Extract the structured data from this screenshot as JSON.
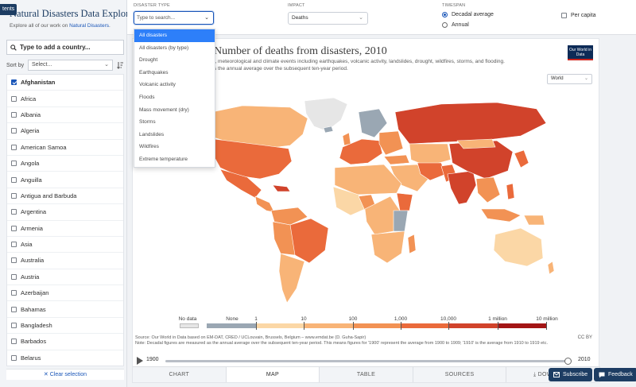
{
  "sidebar": {
    "contents_tab": "tents",
    "title": "Natural Disasters Data Explorer",
    "subtitle_prefix": "Explore all of our work on ",
    "subtitle_link": "Natural Disasters",
    "subtitle_suffix": ".",
    "search_placeholder": "Type to add a country...",
    "sort_label": "Sort by",
    "sort_value": "Select...",
    "countries": [
      {
        "name": "Afghanistan",
        "checked": true
      },
      {
        "name": "Africa",
        "checked": false
      },
      {
        "name": "Albania",
        "checked": false
      },
      {
        "name": "Algeria",
        "checked": false
      },
      {
        "name": "American Samoa",
        "checked": false
      },
      {
        "name": "Angola",
        "checked": false
      },
      {
        "name": "Anguilla",
        "checked": false
      },
      {
        "name": "Antigua and Barbuda",
        "checked": false
      },
      {
        "name": "Argentina",
        "checked": false
      },
      {
        "name": "Armenia",
        "checked": false
      },
      {
        "name": "Asia",
        "checked": false
      },
      {
        "name": "Australia",
        "checked": false
      },
      {
        "name": "Austria",
        "checked": false
      },
      {
        "name": "Azerbaijan",
        "checked": false
      },
      {
        "name": "Bahamas",
        "checked": false
      },
      {
        "name": "Bangladesh",
        "checked": false
      },
      {
        "name": "Barbados",
        "checked": false
      },
      {
        "name": "Belarus",
        "checked": false
      }
    ],
    "clear_label": "Clear selection"
  },
  "controls": {
    "disaster_type_label": "DISASTER TYPE",
    "disaster_type_placeholder": "Type to search...",
    "impact_label": "IMPACT",
    "impact_value": "Deaths",
    "timespan_label": "TIMESPAN",
    "timespan_options": [
      "Decadal average",
      "Annual"
    ],
    "timespan_selected": "Decadal average",
    "per_capita_label": "Per capita"
  },
  "dropdown": {
    "options": [
      "All disasters",
      "All disasters (by type)",
      "Drought",
      "Earthquakes",
      "Volcanic activity",
      "Floods",
      "Mass movement (dry)",
      "Storms",
      "Landslides",
      "Wildfires",
      "Extreme temperature"
    ],
    "highlighted": "All disasters"
  },
  "chart": {
    "title": "Number of deaths from disasters, 2010",
    "subtitle_line1": "l, meteorological and climate events including earthquakes, volcanic activity, landslides, drought, wildfires, storms, and flooding.",
    "subtitle_line2": "s the annual average over the subsequent ten-year period.",
    "logo_text": "Our World in Data",
    "region_value": "World",
    "legend": {
      "no_data_label": "No data",
      "labels": [
        "None",
        "1",
        "10",
        "100",
        "1,000",
        "10,000",
        "1 million",
        "10 million"
      ],
      "colors": {
        "no_data": "#e6e6e6",
        "none": "#9aa7b3",
        "c1": "#fbd7a6",
        "c2": "#f8b477",
        "c3": "#f29254",
        "c4": "#ea6a3b",
        "c5": "#d1432b",
        "c6": "#a31515"
      }
    },
    "source": "Source: Our World in Data based on EM-DAT, CRED / UCLouvain, Brussels, Belgium – www.emdat.be (D. Guha-Sapir)",
    "note": "Note: Decadal figures are measured as the annual average over the subsequent ten-year period. This means figures for '1900' represent the average from 1900 to 1909; '1910' is the average from 1910 to 1919 etc.",
    "license": "CC BY",
    "timeline": {
      "start": "1900",
      "end": "2010",
      "position": 1.0
    }
  },
  "tabs": [
    {
      "label": "CHART",
      "active": false
    },
    {
      "label": "MAP",
      "active": true
    },
    {
      "label": "TABLE",
      "active": false
    },
    {
      "label": "SOURCES",
      "active": false
    },
    {
      "label": "DOWNLOAD",
      "active": false
    }
  ],
  "buttons": {
    "subscribe": "Subscribe",
    "feedback": "Feedback"
  }
}
